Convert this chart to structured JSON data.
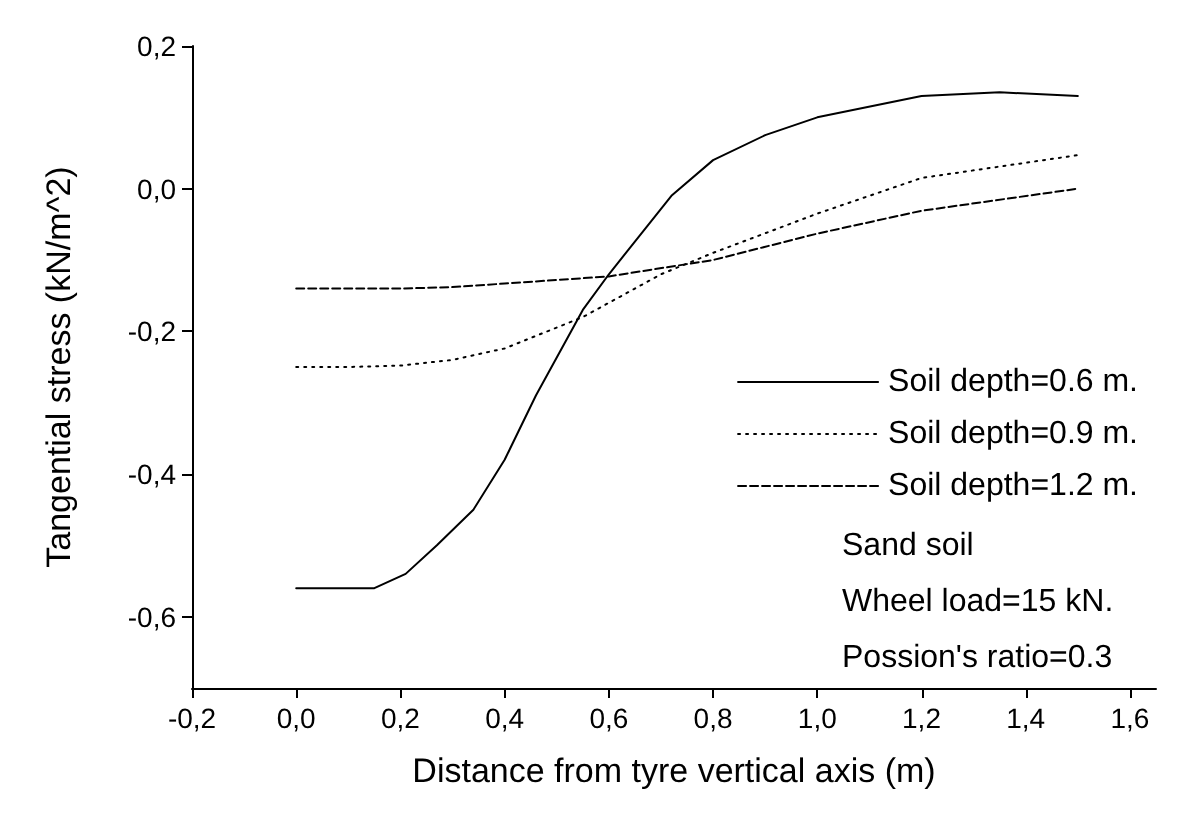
{
  "chart_data": {
    "type": "line",
    "xlabel": "Distance from tyre vertical axis (m)",
    "ylabel": "Tangential stress (kN/m^2)",
    "xlim": [
      -0.2,
      1.65
    ],
    "xticks": [
      {
        "value": -0.2,
        "label": "-0,2"
      },
      {
        "value": 0,
        "label": "0,0"
      },
      {
        "value": 0.2,
        "label": "0,2"
      },
      {
        "value": 0.4,
        "label": "0,4"
      },
      {
        "value": 0.6,
        "label": "0,6"
      },
      {
        "value": 0.8,
        "label": "0,8"
      },
      {
        "value": 1.0,
        "label": "1,0"
      },
      {
        "value": 1.2,
        "label": "1,2"
      },
      {
        "value": 1.4,
        "label": "1,4"
      },
      {
        "value": 1.6,
        "label": "1,6"
      }
    ],
    "ylim": [
      -0.7,
      0.2
    ],
    "yticks": [
      {
        "value": -0.6,
        "label": "-0,6"
      },
      {
        "value": -0.4,
        "label": "-0,4"
      },
      {
        "value": -0.2,
        "label": "-0,2"
      },
      {
        "value": 0,
        "label": "0,0"
      },
      {
        "value": 0.2,
        "label": "0,2"
      }
    ],
    "grid": false,
    "legend": "right",
    "marker": "none",
    "series": [
      {
        "name": "Soil depth=0.6 m.",
        "color": "#000000",
        "line_style": "solid",
        "x": [
          0,
          0.1,
          0.15,
          0.21,
          0.27,
          0.34,
          0.4,
          0.46,
          0.55,
          0.6,
          0.72,
          0.8,
          0.9,
          1.0,
          1.2,
          1.35,
          1.5
        ],
        "values": [
          -0.56,
          -0.56,
          -0.56,
          -0.54,
          -0.5,
          -0.45,
          -0.38,
          -0.29,
          -0.17,
          -0.12,
          -0.01,
          0.04,
          0.075,
          0.1,
          0.13,
          0.135,
          0.13
        ]
      },
      {
        "name": "Soil depth=0.9 m.",
        "color": "#000000",
        "line_style": "dotted",
        "x": [
          0,
          0.1,
          0.2,
          0.3,
          0.4,
          0.55,
          0.7,
          0.8,
          1.0,
          1.2,
          1.5
        ],
        "values": [
          -0.25,
          -0.25,
          -0.248,
          -0.24,
          -0.224,
          -0.18,
          -0.12,
          -0.09,
          -0.035,
          0.015,
          0.047
        ]
      },
      {
        "name": "Soil depth=1.2 m.",
        "color": "#000000",
        "line_style": "dashed",
        "x": [
          0,
          0.2,
          0.3,
          0.4,
          0.6,
          0.8,
          1.0,
          1.2,
          1.5
        ],
        "values": [
          -0.14,
          -0.14,
          -0.138,
          -0.133,
          -0.123,
          -0.1,
          -0.063,
          -0.031,
          0
        ]
      }
    ],
    "annotations": [
      "Sand soil",
      "Wheel load=15 kN.",
      "Possion's ratio=0.3"
    ]
  }
}
